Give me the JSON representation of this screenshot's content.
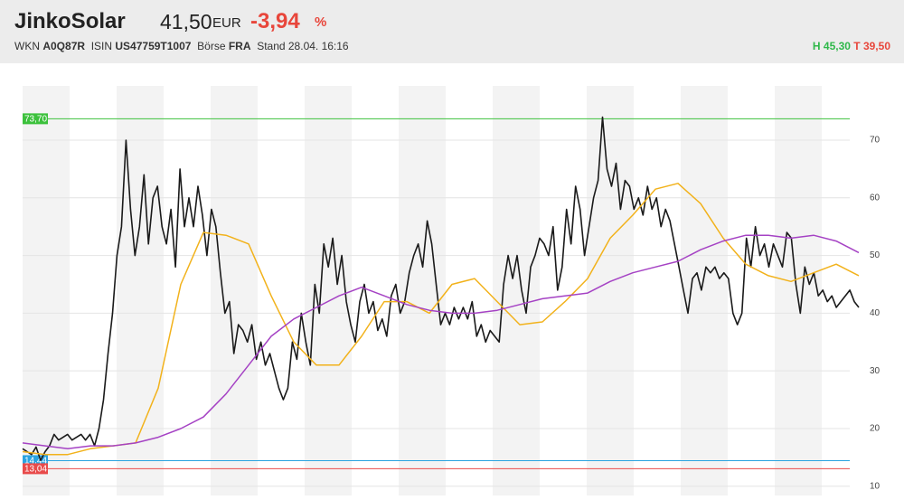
{
  "header": {
    "name": "JinkoSolar",
    "price": "41,50",
    "currency": "EUR",
    "change": "-3,94",
    "change_unit": "%",
    "wkn_label": "WKN",
    "wkn": "A0Q87R",
    "isin_label": "ISIN",
    "isin": "US47759T1007",
    "exchange_label": "Börse",
    "exchange": "FRA",
    "stand": "Stand 28.04. 16:16",
    "high": "H 45,30",
    "low": "T 39,50"
  },
  "chart_data": {
    "type": "line",
    "ylim": [
      8.4,
      79.4
    ],
    "yticks": [
      10,
      20,
      30,
      40,
      50,
      60,
      70
    ],
    "levels": [
      {
        "value": 73.7,
        "label": "73,70",
        "color": "#3cc13c"
      },
      {
        "value": 14.44,
        "label": "14,44",
        "color": "#2aa3e0"
      },
      {
        "value": 13.04,
        "label": "13,04",
        "color": "#e84a4a"
      }
    ],
    "series": [
      {
        "color": "#1a1a1a",
        "values": [
          16.5,
          16,
          15.5,
          16.8,
          14.5,
          16,
          17,
          19,
          18,
          18.5,
          19,
          18,
          18.5,
          19,
          18,
          19,
          17,
          20,
          25,
          33,
          40,
          50,
          55,
          70,
          58,
          50,
          55,
          64,
          52,
          60,
          62,
          55,
          52,
          58,
          48,
          65,
          55,
          60,
          55,
          62,
          57,
          50,
          58,
          55,
          47,
          40,
          42,
          33,
          38,
          37,
          35,
          38,
          32,
          35,
          31,
          33,
          30,
          27,
          25,
          27,
          35,
          32,
          40,
          35,
          31,
          45,
          40,
          52,
          48,
          53,
          45,
          50,
          42,
          38,
          35,
          42,
          45,
          40,
          42,
          37,
          39,
          36,
          43,
          45,
          40,
          42,
          47,
          50,
          52,
          48,
          56,
          52,
          45,
          38,
          40,
          38,
          41,
          39,
          41,
          39,
          42,
          36,
          38,
          35,
          37,
          36,
          35,
          45,
          50,
          46,
          50,
          44,
          40,
          48,
          50,
          53,
          52,
          50,
          55,
          44,
          48,
          58,
          52,
          62,
          58,
          50,
          55,
          60,
          63,
          74,
          65,
          62,
          66,
          58,
          63,
          62,
          58,
          60,
          57,
          62,
          58,
          60,
          55,
          58,
          56,
          52,
          48,
          44,
          40,
          46,
          47,
          44,
          48,
          47,
          48,
          46,
          47,
          46,
          40,
          38,
          40,
          53,
          48,
          55,
          50,
          52,
          48,
          52,
          50,
          48,
          54,
          53,
          45,
          40,
          48,
          45,
          47,
          43,
          44,
          42,
          43,
          41,
          42,
          43,
          44,
          42,
          41
        ]
      },
      {
        "color": "#f2b21b",
        "values": [
          16,
          15.5,
          15.5,
          16.5,
          17,
          17.5,
          27,
          45,
          54,
          53.5,
          52,
          43,
          35,
          31,
          31,
          36,
          42,
          42,
          40,
          45,
          46,
          42,
          38,
          38.5,
          42,
          46,
          53,
          57,
          61.5,
          62.5,
          59,
          53,
          48.5,
          46.5,
          45.5,
          47,
          48.5,
          46.5
        ]
      },
      {
        "color": "#a542c4",
        "values": [
          17.5,
          17,
          16.5,
          17,
          17,
          17.5,
          18.5,
          20,
          22,
          26,
          31,
          36,
          39,
          41,
          43,
          44.5,
          43,
          41.5,
          40.5,
          40,
          40,
          40.5,
          41.5,
          42.5,
          43,
          43.5,
          45.5,
          47,
          48,
          49,
          51,
          52.5,
          53.5,
          53.5,
          53,
          53.5,
          52.5,
          50.5
        ]
      }
    ]
  }
}
